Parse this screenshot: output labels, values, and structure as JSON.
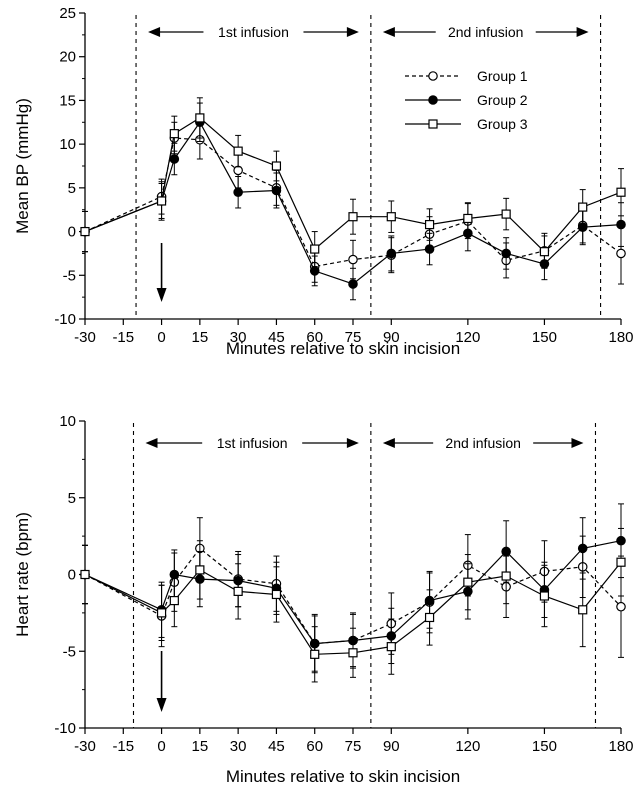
{
  "chart_data": [
    {
      "type": "line",
      "title": "",
      "xlabel": "Minutes relative to skin incision",
      "ylabel": "Mean BP (mmHg)",
      "xlim": [
        -30,
        180
      ],
      "ylim": [
        -10,
        25
      ],
      "xticks": [
        -30,
        -15,
        0,
        15,
        30,
        45,
        60,
        75,
        90,
        120,
        150,
        180
      ],
      "yticks": [
        -10,
        -5,
        0,
        5,
        10,
        15,
        20,
        25
      ],
      "x": [
        -30,
        0,
        5,
        15,
        30,
        45,
        60,
        75,
        90,
        105,
        120,
        135,
        150,
        165,
        180
      ],
      "series": [
        {
          "name": "Group 1",
          "marker": "open-circle",
          "line": "dashed",
          "values": [
            0,
            4,
            10.7,
            10.5,
            7,
            5,
            -4,
            -3.2,
            -2.7,
            -0.3,
            1.2,
            -3.3,
            -2.2,
            0.7,
            -2.5
          ],
          "err": [
            2.3,
            2.0,
            1.8,
            2.2,
            2.0,
            2.0,
            1.8,
            2.2,
            2.0,
            2.0,
            2.0,
            2.0,
            2.0,
            2.0,
            3.5
          ]
        },
        {
          "name": "Group 2",
          "marker": "filled-circle",
          "line": "solid",
          "values": [
            0,
            3.5,
            8.3,
            12.5,
            4.5,
            4.7,
            -4.5,
            -6,
            -2.5,
            -2,
            -0.2,
            -2.5,
            -3.7,
            0.5,
            0.8
          ],
          "err": [
            2.3,
            2.0,
            1.8,
            2.2,
            1.8,
            2.0,
            1.7,
            1.8,
            2.0,
            1.8,
            2.0,
            1.8,
            1.8,
            2.0,
            2.5
          ]
        },
        {
          "name": "Group 3",
          "marker": "open-square",
          "line": "solid",
          "values": [
            0,
            3.5,
            11.2,
            13,
            9.2,
            7.5,
            -2,
            1.7,
            1.7,
            0.8,
            1.5,
            2,
            -2.3,
            2.8,
            4.5
          ],
          "err": [
            2.3,
            2.2,
            2.0,
            2.3,
            1.8,
            1.7,
            2.0,
            2.0,
            1.8,
            1.8,
            1.8,
            1.8,
            1.8,
            2.0,
            2.7
          ]
        }
      ],
      "vlines": [
        -10,
        82,
        172
      ],
      "annotations": [
        {
          "text": "1st infusion",
          "from": -10,
          "to": 82
        },
        {
          "text": "2nd infusion",
          "from": 82,
          "to": 172
        }
      ],
      "arrow_at": 0,
      "legend": "top-right"
    },
    {
      "type": "line",
      "title": "",
      "xlabel": "Minutes relative to skin incision",
      "ylabel": "Heart rate (bpm)",
      "xlim": [
        -30,
        180
      ],
      "ylim": [
        -10,
        10
      ],
      "xticks": [
        -30,
        -15,
        0,
        15,
        30,
        45,
        60,
        75,
        90,
        120,
        150,
        180
      ],
      "yticks": [
        -10,
        -5,
        0,
        5,
        10
      ],
      "x": [
        -30,
        0,
        5,
        15,
        30,
        45,
        60,
        75,
        90,
        105,
        120,
        135,
        150,
        165,
        180
      ],
      "series": [
        {
          "name": "Group 1",
          "marker": "open-circle",
          "line": "dashed",
          "values": [
            0,
            -2.7,
            -0.5,
            1.7,
            -0.3,
            -0.6,
            -4.5,
            -4.3,
            -3.2,
            -1.8,
            0.6,
            -0.8,
            0.2,
            0.5,
            -2.1
          ],
          "err": [
            1.9,
            2.0,
            1.9,
            2.0,
            1.8,
            1.8,
            1.9,
            1.8,
            2.0,
            2.0,
            2.0,
            2.0,
            2.0,
            2.0,
            3.3
          ]
        },
        {
          "name": "Group 2",
          "marker": "filled-circle",
          "line": "solid",
          "values": [
            0,
            -2.3,
            0,
            -0.3,
            -0.4,
            -0.9,
            -4.5,
            -4.3,
            -4,
            -1.7,
            -1.1,
            1.5,
            -1,
            1.7,
            2.2
          ],
          "err": [
            1.9,
            1.8,
            1.6,
            1.8,
            1.7,
            1.7,
            1.8,
            1.7,
            1.8,
            1.8,
            1.8,
            2.0,
            1.8,
            2.0,
            2.4
          ]
        },
        {
          "name": "Group 3",
          "marker": "open-square",
          "line": "solid",
          "values": [
            0,
            -2.5,
            -1.7,
            0.3,
            -1.1,
            -1.3,
            -5.2,
            -5.1,
            -4.7,
            -2.8,
            -0.5,
            -0.1,
            -1.4,
            -2.3,
            0.8
          ],
          "err": [
            1.9,
            1.8,
            1.7,
            1.9,
            1.8,
            1.8,
            1.8,
            1.6,
            1.8,
            1.8,
            1.8,
            1.8,
            2.0,
            2.4,
            2.2
          ]
        }
      ],
      "vlines": [
        -11,
        82,
        170
      ],
      "annotations": [
        {
          "text": "1st infusion",
          "from": -11,
          "to": 82
        },
        {
          "text": "2nd infusion",
          "from": 82,
          "to": 170
        }
      ],
      "arrow_at": 0
    }
  ]
}
